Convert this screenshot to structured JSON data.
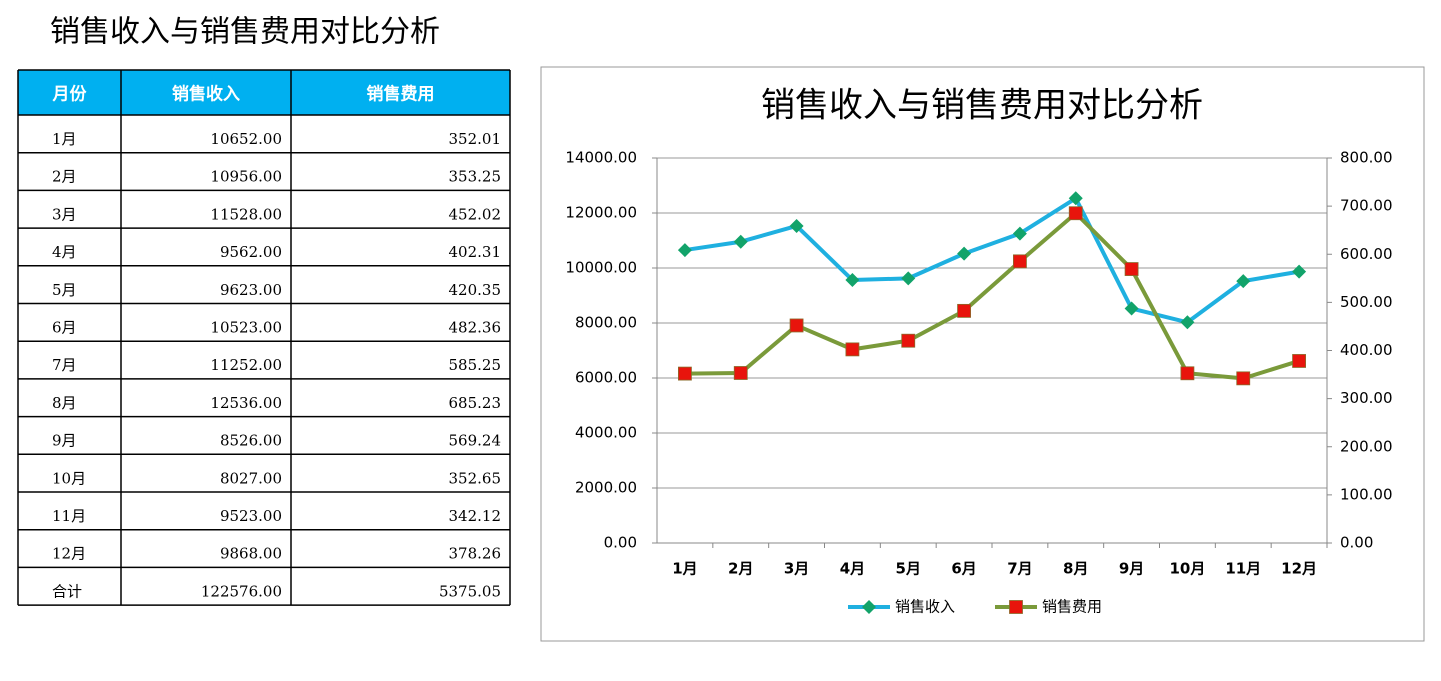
{
  "title": "销售收入与销售费用对比分析",
  "table": {
    "header": [
      "月份",
      "销售收入",
      "销售费用"
    ],
    "rows": [
      [
        "1月",
        "10652.00",
        "352.01"
      ],
      [
        "2月",
        "10956.00",
        "353.25"
      ],
      [
        "3月",
        "11528.00",
        "452.02"
      ],
      [
        "4月",
        "9562.00",
        "402.31"
      ],
      [
        "5月",
        "9623.00",
        "420.35"
      ],
      [
        "6月",
        "10523.00",
        "482.36"
      ],
      [
        "7月",
        "11252.00",
        "585.25"
      ],
      [
        "8月",
        "12536.00",
        "685.23"
      ],
      [
        "9月",
        "8526.00",
        "569.24"
      ],
      [
        "10月",
        "8027.00",
        "352.65"
      ],
      [
        "11月",
        "9523.00",
        "342.12"
      ],
      [
        "12月",
        "9868.00",
        "378.26"
      ],
      [
        "合计",
        "122576.00",
        "5375.05"
      ]
    ]
  },
  "chart_data": {
    "type": "line",
    "title": "销售收入与销售费用对比分析",
    "categories": [
      "1月",
      "2月",
      "3月",
      "4月",
      "5月",
      "6月",
      "7月",
      "8月",
      "9月",
      "10月",
      "11月",
      "12月"
    ],
    "series": [
      {
        "name": "销售收入",
        "color": "#1fb0e0",
        "marker": "diamond",
        "marker_color": "#12a36a",
        "values": [
          10652,
          10956,
          11528,
          9562,
          9623,
          10523,
          11252,
          12536,
          8526,
          8027,
          9523,
          9868
        ]
      },
      {
        "name": "销售费用",
        "color": "#7a9a3a",
        "marker": "square",
        "marker_color": "#e8140c",
        "axis": "y2",
        "values": [
          352.01,
          353.25,
          452.02,
          402.31,
          420.35,
          482.36,
          585.25,
          685.23,
          569.24,
          352.65,
          342.12,
          378.26
        ]
      }
    ],
    "ylim": [
      0,
      14000
    ],
    "yticks": [
      {
        "value": 0,
        "label": "0.00"
      },
      {
        "value": 2000,
        "label": "2000.00"
      },
      {
        "value": 4000,
        "label": "4000.00"
      },
      {
        "value": 6000,
        "label": "6000.00"
      },
      {
        "value": 8000,
        "label": "8000.00"
      },
      {
        "value": 10000,
        "label": "10000.00"
      },
      {
        "value": 12000,
        "label": "12000.00"
      },
      {
        "value": 14000,
        "label": "14000.00"
      }
    ],
    "y2lim": [
      0,
      800
    ],
    "y2ticks": [
      {
        "value": 0,
        "label": "0.00"
      },
      {
        "value": 100,
        "label": "100.00"
      },
      {
        "value": 200,
        "label": "200.00"
      },
      {
        "value": 300,
        "label": "300.00"
      },
      {
        "value": 400,
        "label": "400.00"
      },
      {
        "value": 500,
        "label": "500.00"
      },
      {
        "value": 600,
        "label": "600.00"
      },
      {
        "value": 700,
        "label": "700.00"
      },
      {
        "value": 800,
        "label": "800.00"
      }
    ],
    "grid": true,
    "legend": "bottom"
  }
}
